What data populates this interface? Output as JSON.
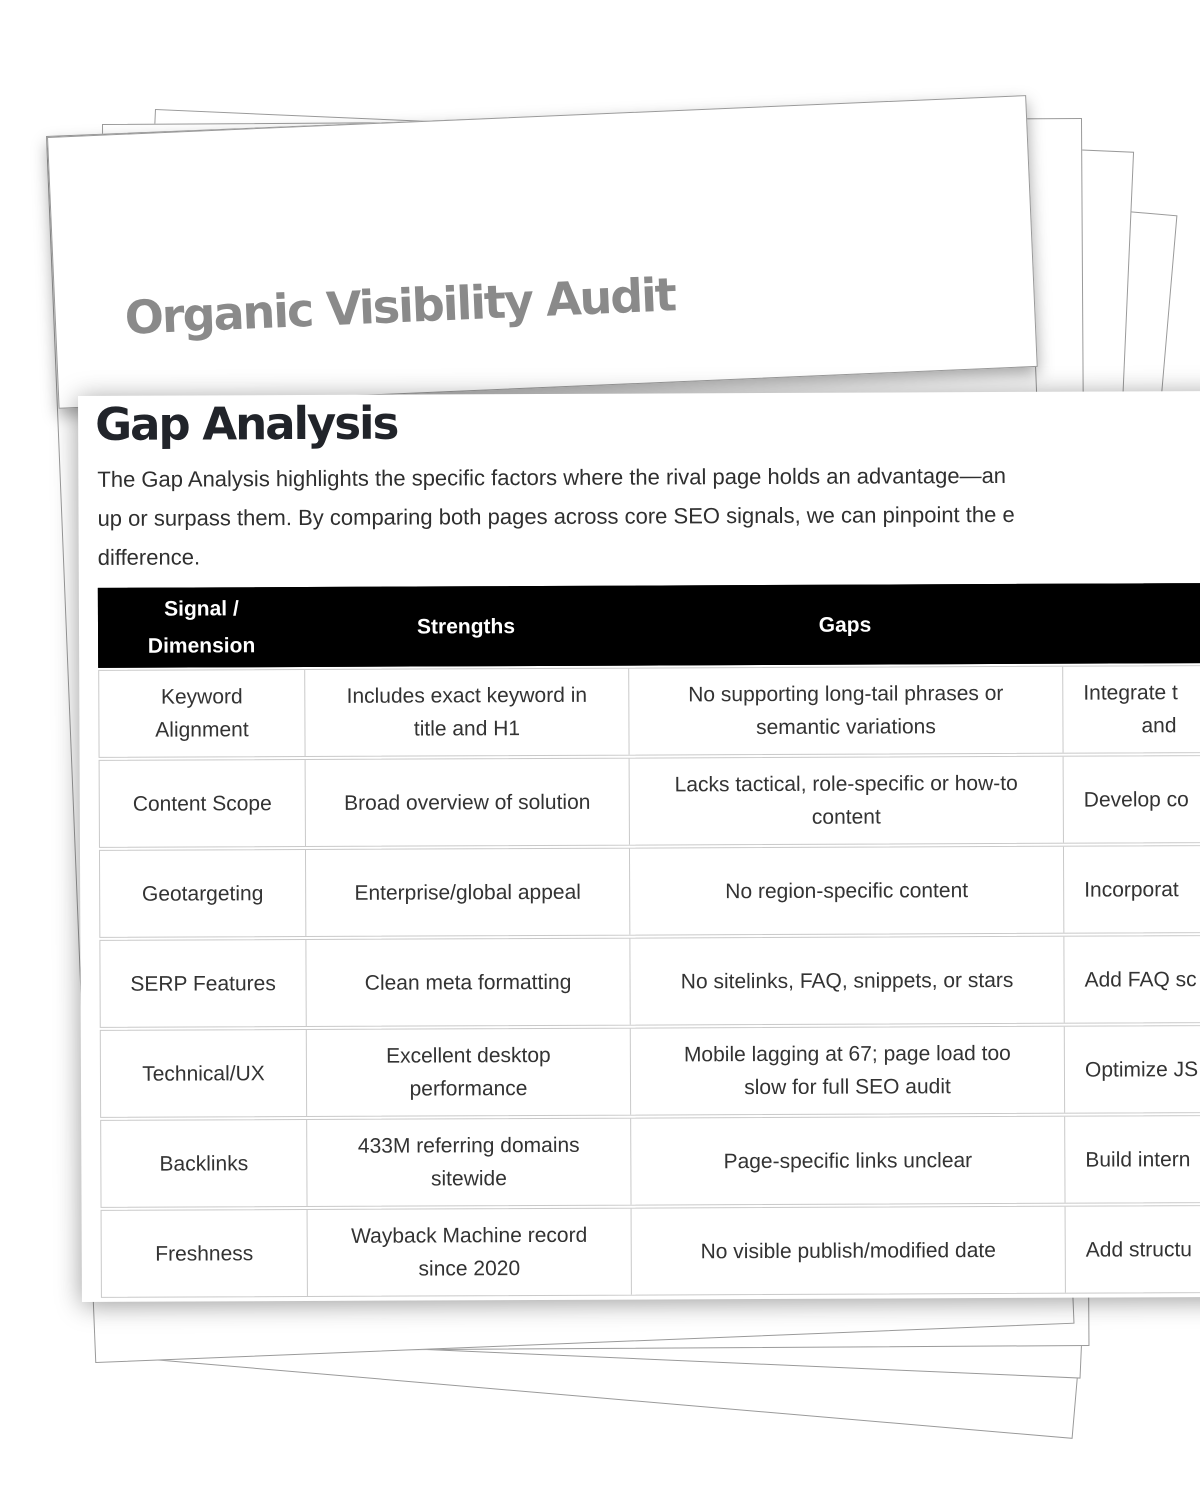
{
  "title_page": {
    "title": "Organic Visibility Audit"
  },
  "report": {
    "heading": "Gap Analysis",
    "intro_lines": [
      "The Gap Analysis highlights the specific factors where the rival page holds an advantage—an",
      "up or surpass them. By comparing both pages across core SEO signals, we can pinpoint the e",
      "difference."
    ],
    "table": {
      "header": {
        "signal": [
          "Signal /",
          "Dimension"
        ],
        "strengths": "Strengths",
        "gaps": "Gaps",
        "recommendations": ""
      },
      "rows": [
        {
          "signal": [
            "Keyword",
            "Alignment"
          ],
          "strengths": [
            "Includes exact keyword in",
            "title and H1"
          ],
          "gaps": [
            "No supporting long-tail phrases or",
            "semantic variations"
          ],
          "reco": [
            "Integrate t",
            "and"
          ]
        },
        {
          "signal": [
            "Content Scope"
          ],
          "strengths": [
            "Broad overview of solution"
          ],
          "gaps": [
            "Lacks tactical, role-specific or how-to",
            "content"
          ],
          "reco": [
            "Develop co"
          ]
        },
        {
          "signal": [
            "Geotargeting"
          ],
          "strengths": [
            "Enterprise/global appeal"
          ],
          "gaps": [
            "No region-specific content"
          ],
          "reco": [
            "Incorporat"
          ]
        },
        {
          "signal": [
            "SERP Features"
          ],
          "strengths": [
            "Clean meta formatting"
          ],
          "gaps": [
            "No sitelinks, FAQ, snippets, or stars"
          ],
          "reco": [
            "Add FAQ sc"
          ]
        },
        {
          "signal": [
            "Technical/UX"
          ],
          "strengths": [
            "Excellent desktop",
            "performance"
          ],
          "gaps": [
            "Mobile lagging at 67; page load too",
            "slow for full SEO audit"
          ],
          "reco": [
            "Optimize JS"
          ]
        },
        {
          "signal": [
            "Backlinks"
          ],
          "strengths": [
            "433M referring domains",
            "sitewide"
          ],
          "gaps": [
            "Page-specific links unclear"
          ],
          "reco": [
            "Build intern"
          ]
        },
        {
          "signal": [
            "Freshness"
          ],
          "strengths": [
            "Wayback Machine record",
            "since 2020"
          ],
          "gaps": [
            "No visible publish/modified date"
          ],
          "reco": [
            "Add structu"
          ]
        }
      ]
    }
  },
  "colors": {
    "title_text": "#8a8a8a",
    "heading_text": "#21242a",
    "body_text": "#2f2f2f",
    "table_header_bg": "#000000",
    "table_header_text": "#ffffff",
    "table_border": "#c9c9c9",
    "page_border": "#9a9a9a"
  }
}
